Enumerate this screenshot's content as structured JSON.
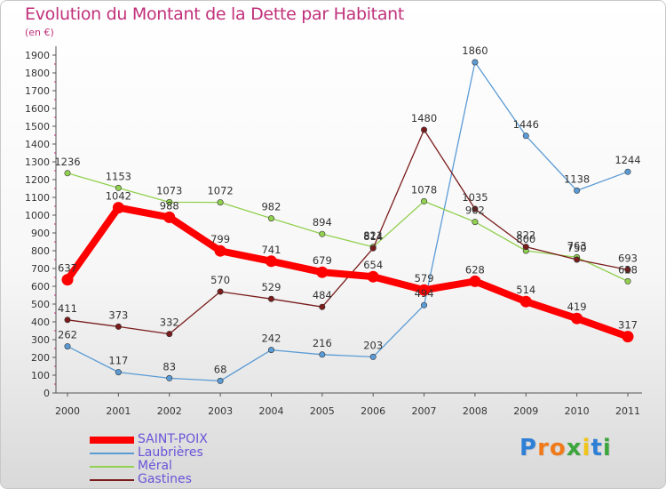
{
  "chart_data": {
    "type": "line",
    "title": "Evolution du Montant de la Dette par Habitant",
    "subtitle": "(en €)",
    "x": [
      "2000",
      "2001",
      "2002",
      "2003",
      "2004",
      "2005",
      "2006",
      "2007",
      "2008",
      "2009",
      "2010",
      "2011"
    ],
    "yticks": [
      "0",
      "100",
      "200",
      "300",
      "400",
      "500",
      "600",
      "700",
      "800",
      "900",
      "1000",
      "1100",
      "1200",
      "1300",
      "1400",
      "1500",
      "1600",
      "1700",
      "1800",
      "1900"
    ],
    "ylim": [
      0,
      1900
    ],
    "grid": false,
    "legend_position": "bottom-left",
    "series": [
      {
        "name": "SAINT-POIX",
        "color": "#ff0000",
        "emphasis": true,
        "values": [
          637,
          1042,
          988,
          799,
          741,
          679,
          654,
          579,
          628,
          514,
          419,
          317
        ],
        "labels": [
          "637",
          "1042",
          "988",
          "799",
          "741",
          "679",
          "654",
          "579",
          "628",
          "514",
          "419",
          "317"
        ]
      },
      {
        "name": "Laubrières",
        "color": "#5b9bd5",
        "values": [
          262,
          117,
          83,
          68,
          242,
          216,
          203,
          494,
          1860,
          1446,
          1138,
          1244
        ],
        "labels": [
          "262",
          "117",
          "83",
          "68",
          "242",
          "216",
          "203",
          "494",
          "1860",
          "1446",
          "1138",
          "1244"
        ]
      },
      {
        "name": "Méral",
        "color": "#92d050",
        "values": [
          1236,
          1153,
          1073,
          1072,
          982,
          894,
          821,
          1078,
          962,
          800,
          763,
          628
        ],
        "labels": [
          "1236",
          "1153",
          "1073",
          "1072",
          "982",
          "894",
          "821",
          "1078",
          "962",
          "800",
          "763",
          "628"
        ]
      },
      {
        "name": "Gastines",
        "color": "#7a1c1c",
        "values": [
          411,
          373,
          332,
          570,
          529,
          484,
          814,
          1480,
          1035,
          822,
          750,
          693
        ],
        "labels": [
          "411",
          "373",
          "332",
          "570",
          "529",
          "484",
          "814",
          "1480",
          "1035",
          "822",
          "750",
          "693"
        ]
      }
    ]
  },
  "logo": {
    "letters": [
      "P",
      "r",
      "o",
      "x",
      "i",
      "t",
      "i"
    ],
    "colors": [
      "#2e7fd6",
      "#f07a1a",
      "#f07a1a",
      "#3da53d",
      "#f0c419",
      "#2e7fd6",
      "#3da53d"
    ]
  }
}
